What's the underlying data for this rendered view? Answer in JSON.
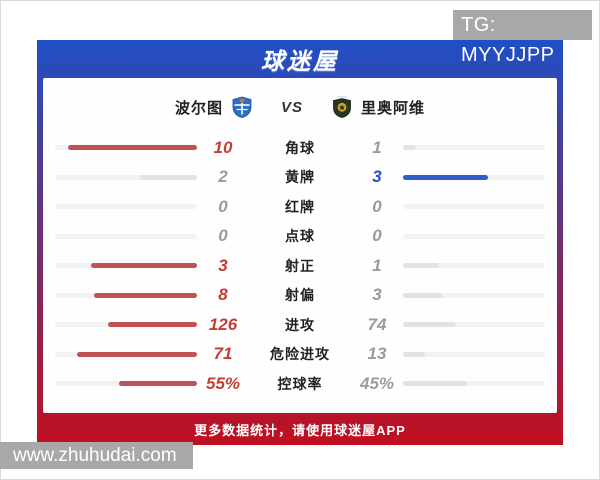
{
  "overlay": {
    "tg_label": "TG: MYYJJPP",
    "watermark": "www.zhuhudai.com"
  },
  "header": {
    "brand": "球迷屋"
  },
  "match": {
    "home_name": "波尔图",
    "vs_label": "VS",
    "away_name": "里奥阿维"
  },
  "footer": {
    "text": "更多数据统计，请使用球迷屋APP"
  },
  "colors": {
    "panel_gradient_top": "#1e4fc6",
    "panel_gradient_bottom": "#c10f1f",
    "home_value": "#c43d35",
    "home_bar": "#bf5252",
    "away_value": "#2353c5",
    "away_bar": "#2e5ec9",
    "neutral_value": "#9b9b9b",
    "bar_track": "#f2f2f2",
    "bar_neutral_fill": "#e2e2e2",
    "overlay_bg": "#a8a8a8"
  },
  "chart_data": {
    "type": "bar",
    "orientation": "mirrored-horizontal",
    "series_names": [
      "波尔图",
      "里奥阿维"
    ],
    "note": "fill length = value / (home+away); leader value colored, loser gray",
    "rows": [
      {
        "label": "角球",
        "home": 10,
        "away": 1,
        "unit": ""
      },
      {
        "label": "黄牌",
        "home": 2,
        "away": 3,
        "unit": ""
      },
      {
        "label": "红牌",
        "home": 0,
        "away": 0,
        "unit": ""
      },
      {
        "label": "点球",
        "home": 0,
        "away": 0,
        "unit": ""
      },
      {
        "label": "射正",
        "home": 3,
        "away": 1,
        "unit": ""
      },
      {
        "label": "射偏",
        "home": 8,
        "away": 3,
        "unit": ""
      },
      {
        "label": "进攻",
        "home": 126,
        "away": 74,
        "unit": ""
      },
      {
        "label": "危险进攻",
        "home": 71,
        "away": 13,
        "unit": ""
      },
      {
        "label": "控球率",
        "home": 55,
        "away": 45,
        "unit": "%"
      }
    ]
  }
}
